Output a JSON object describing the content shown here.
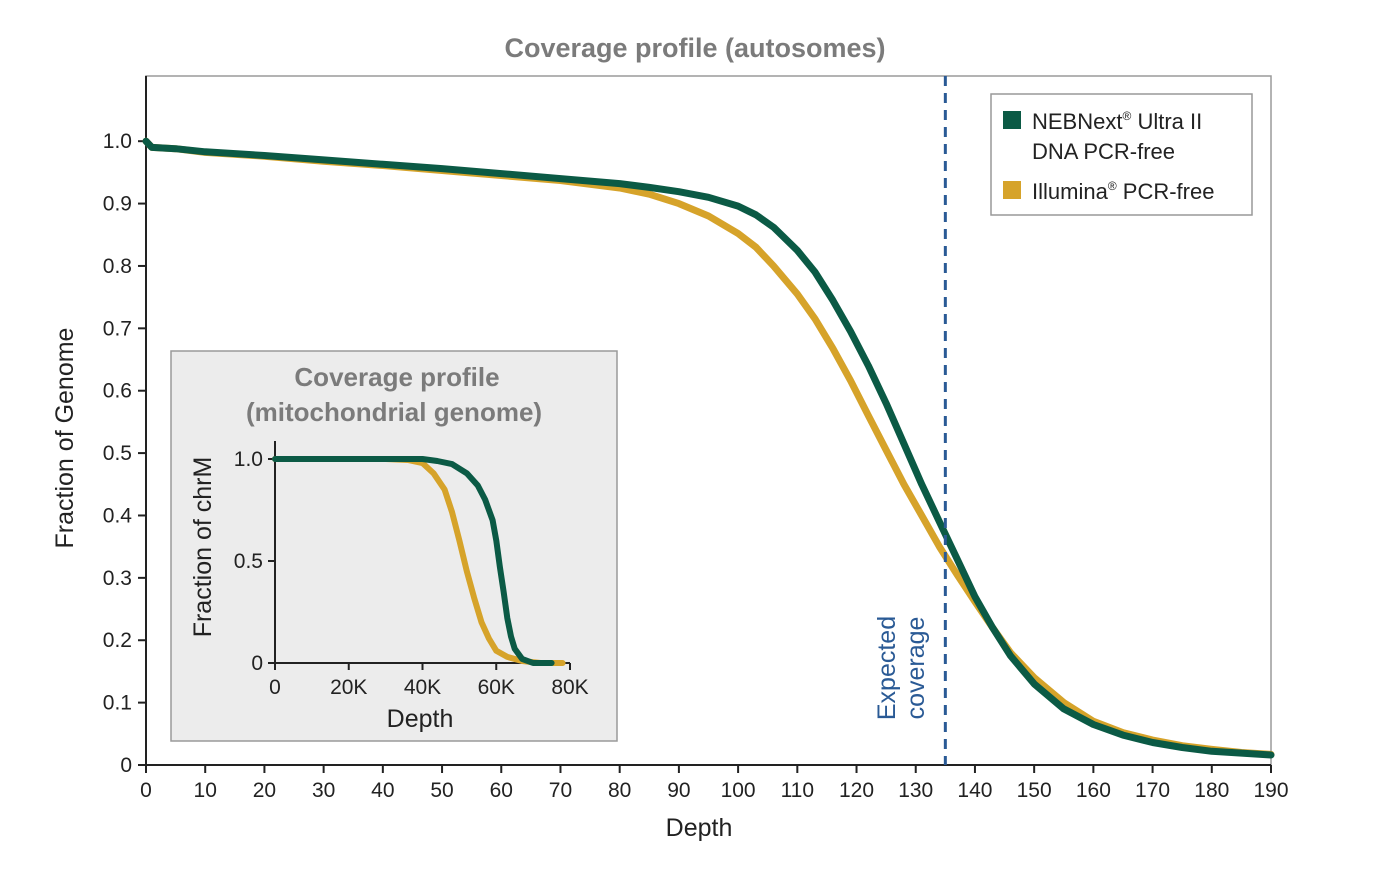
{
  "chart_data": [
    {
      "type": "line",
      "title": "Coverage profile (autosomes)",
      "xlabel": "Depth",
      "ylabel": "Fraction of Genome",
      "xlim": [
        0,
        190
      ],
      "ylim": [
        0,
        1.05
      ],
      "x_ticks": [
        0,
        10,
        20,
        30,
        40,
        50,
        60,
        70,
        80,
        90,
        100,
        110,
        120,
        130,
        140,
        150,
        160,
        170,
        180,
        190
      ],
      "y_ticks": [
        0,
        0.1,
        0.2,
        0.3,
        0.4,
        0.5,
        0.6,
        0.7,
        0.8,
        0.9,
        1.0
      ],
      "y_tick_labels": [
        "0",
        "0.1",
        "0.2",
        "0.3",
        "0.4",
        "0.5",
        "0.6",
        "0.7",
        "0.8",
        "0.9",
        "1.0"
      ],
      "grid": false,
      "legend_position": "top-right",
      "legend": [
        {
          "name": "NEBNext",
          "sup": "®",
          "rest": " Ultra II",
          "line2": "DNA PCR-free",
          "color": "#0b5a45"
        },
        {
          "name": "Illumina",
          "sup": "®",
          "rest": " PCR-free",
          "line2": "",
          "color": "#d6a32a"
        }
      ],
      "annotation": {
        "text_line1": "Expected",
        "text_line2": "coverage",
        "x": 135,
        "color": "#2a5a95"
      },
      "series": [
        {
          "key": "neb",
          "color": "#0b5a45",
          "x": [
            0,
            1,
            5,
            10,
            20,
            30,
            40,
            50,
            60,
            70,
            80,
            85,
            90,
            95,
            100,
            103,
            106,
            110,
            113,
            116,
            119,
            122,
            125,
            128,
            131,
            134,
            137,
            140,
            143,
            146,
            150,
            155,
            160,
            165,
            170,
            175,
            180,
            185,
            190
          ],
          "y": [
            1.0,
            0.99,
            0.988,
            0.983,
            0.977,
            0.97,
            0.963,
            0.956,
            0.948,
            0.94,
            0.932,
            0.926,
            0.919,
            0.91,
            0.896,
            0.882,
            0.862,
            0.825,
            0.79,
            0.745,
            0.695,
            0.64,
            0.58,
            0.515,
            0.45,
            0.39,
            0.33,
            0.27,
            0.22,
            0.175,
            0.13,
            0.09,
            0.065,
            0.048,
            0.036,
            0.028,
            0.022,
            0.019,
            0.016
          ]
        },
        {
          "key": "illumina",
          "color": "#d6a32a",
          "x": [
            0,
            1,
            5,
            10,
            20,
            30,
            40,
            50,
            60,
            70,
            80,
            85,
            90,
            95,
            100,
            103,
            106,
            110,
            113,
            116,
            119,
            122,
            125,
            128,
            131,
            134,
            137,
            140,
            143,
            146,
            150,
            155,
            160,
            165,
            170,
            175,
            180,
            185,
            190
          ],
          "y": [
            1.0,
            0.99,
            0.988,
            0.982,
            0.976,
            0.968,
            0.961,
            0.953,
            0.945,
            0.937,
            0.925,
            0.915,
            0.9,
            0.88,
            0.852,
            0.83,
            0.8,
            0.755,
            0.715,
            0.668,
            0.616,
            0.56,
            0.505,
            0.45,
            0.4,
            0.35,
            0.305,
            0.262,
            0.22,
            0.18,
            0.14,
            0.1,
            0.07,
            0.052,
            0.04,
            0.031,
            0.025,
            0.02,
            0.017
          ]
        }
      ]
    },
    {
      "type": "line",
      "title_line1": "Coverage profile",
      "title_line2": "(mitochondrial genome)",
      "xlabel": "Depth",
      "ylabel": "Fraction of chrM",
      "xlim": [
        0,
        80000
      ],
      "ylim": [
        0,
        1.0
      ],
      "x_ticks": [
        0,
        20000,
        40000,
        60000,
        80000
      ],
      "x_tick_labels": [
        "0",
        "20K",
        "40K",
        "60K",
        "80K"
      ],
      "y_ticks": [
        0,
        0.5,
        1.0
      ],
      "y_tick_labels": [
        "0",
        "0.5",
        "1.0"
      ],
      "series": [
        {
          "key": "neb",
          "color": "#0b5a45",
          "x": [
            0,
            30000,
            40000,
            44000,
            48000,
            52000,
            55000,
            57000,
            59000,
            60000,
            61000,
            62000,
            63000,
            64000,
            65000,
            67000,
            70000,
            75000
          ],
          "y": [
            1.0,
            1.0,
            1.0,
            0.99,
            0.975,
            0.93,
            0.87,
            0.8,
            0.7,
            0.6,
            0.47,
            0.35,
            0.22,
            0.13,
            0.07,
            0.02,
            0.0,
            0.0
          ]
        },
        {
          "key": "illumina",
          "color": "#d6a32a",
          "x": [
            0,
            30000,
            36000,
            40000,
            43000,
            46000,
            48000,
            50000,
            52000,
            54000,
            56000,
            58000,
            60000,
            63000,
            67000,
            72000,
            78000
          ],
          "y": [
            1.0,
            1.0,
            0.995,
            0.98,
            0.93,
            0.85,
            0.74,
            0.6,
            0.45,
            0.32,
            0.2,
            0.12,
            0.06,
            0.03,
            0.01,
            0.0,
            0.0
          ]
        }
      ]
    }
  ]
}
